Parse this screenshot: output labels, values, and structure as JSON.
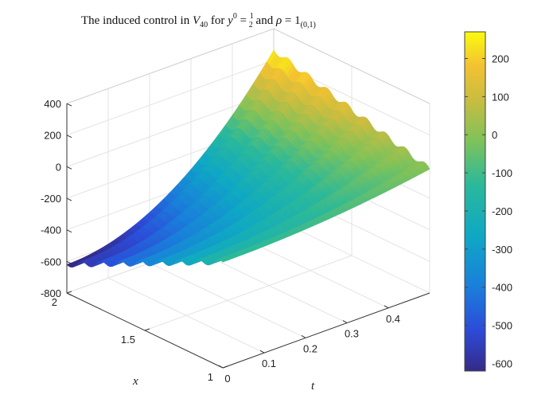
{
  "chart_data": {
    "type": "surface",
    "title": {
      "prefix": "The induced control in ",
      "V": "V",
      "V_sub": "40",
      "middle": " for ",
      "y": "y",
      "y_sup": "0",
      "eq1": " = ",
      "frac_num": "1",
      "frac_den": "2",
      "and": " and ",
      "rho": "ρ",
      "eq2": " = 1",
      "rho_sub": "(0,1)"
    },
    "xlabel": "t",
    "ylabel": "x",
    "zlabel": "",
    "xlim": [
      0,
      0.5
    ],
    "ylim": [
      1,
      2
    ],
    "zlim": [
      -800,
      400
    ],
    "xticks": [
      "0",
      "0.1",
      "0.2",
      "0.3",
      "0.4"
    ],
    "yticks": [
      "1",
      "1.5",
      "2"
    ],
    "zticks": [
      "400",
      "200",
      "0",
      "-200",
      "-400",
      "-600",
      "-800"
    ],
    "x_tick_values": [
      0,
      0.1,
      0.2,
      0.3,
      0.4
    ],
    "y_tick_values": [
      1,
      1.5,
      2
    ],
    "z_tick_values": [
      400,
      200,
      0,
      -200,
      -400,
      -600,
      -800
    ],
    "colorbar": {
      "ticks": [
        "200",
        "100",
        "0",
        "-100",
        "-200",
        "-300",
        "-400",
        "-500",
        "-600"
      ],
      "tick_values": [
        200,
        100,
        0,
        -100,
        -200,
        -300,
        -400,
        -500,
        -600
      ],
      "range": [
        -620,
        270
      ],
      "colormap": "parula"
    },
    "surface_corners": {
      "t0_x1": -130,
      "t0_x2": -620,
      "t05_x1": -15,
      "t05_x2": 265
    },
    "oscillation_count": 8,
    "oscillation_amplitude": 18,
    "grid": true
  }
}
